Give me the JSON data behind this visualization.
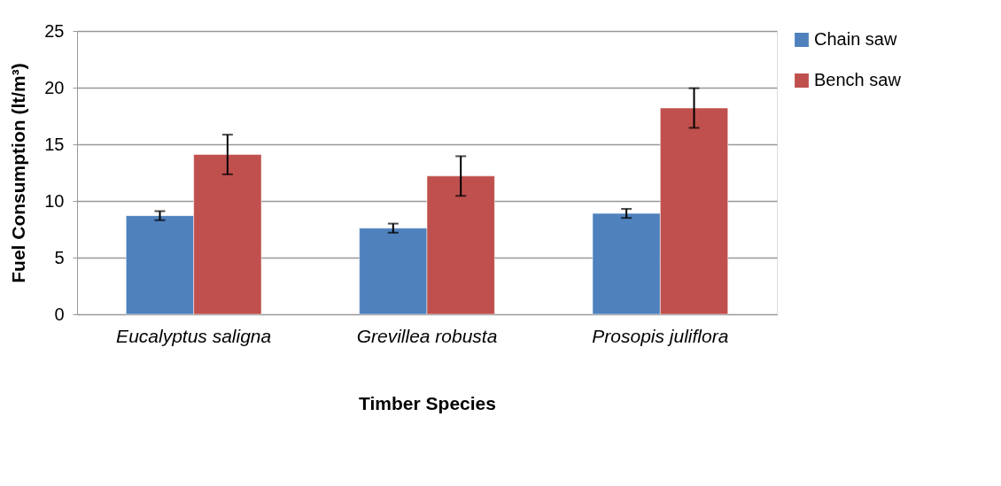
{
  "chart_data": {
    "type": "bar",
    "xlabel": "Timber Species",
    "ylabel": "Fuel Consumption (lt/m³)",
    "categories": [
      "Eucalyptus saligna",
      "Grevillea robusta",
      "Prosopis juliflora"
    ],
    "series": [
      {
        "name": "Chain saw",
        "color": "#4f81bd",
        "values": [
          8.7,
          7.6,
          8.9
        ],
        "errors": [
          0.4,
          0.4,
          0.4
        ]
      },
      {
        "name": "Bench saw",
        "color": "#c0504d",
        "values": [
          14.1,
          12.2,
          18.2
        ],
        "errors": [
          1.75,
          1.75,
          1.75
        ]
      }
    ],
    "ylim": [
      0,
      25
    ],
    "yticks": [
      0,
      5,
      10,
      15,
      20,
      25
    ],
    "grid": "y",
    "legend": "right"
  }
}
